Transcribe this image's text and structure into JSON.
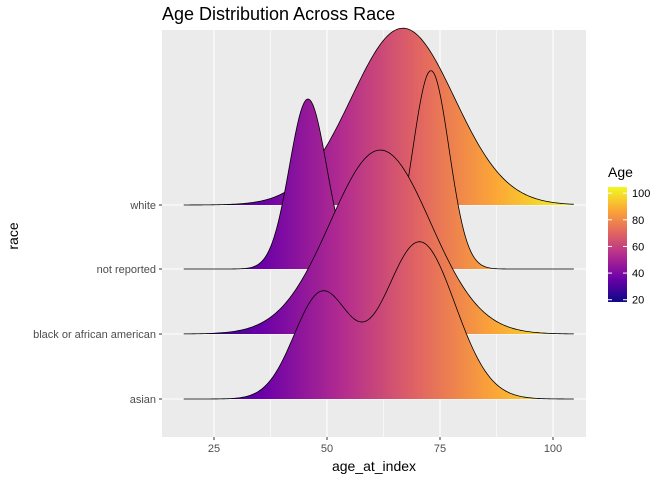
{
  "chart_data": {
    "type": "ridgeline",
    "title": "Age Distribution Across Race",
    "xlabel": "age_at_index",
    "ylabel": "race",
    "xlim": [
      13.5,
      107.3
    ],
    "x_ticks": [
      25,
      50,
      75,
      100
    ],
    "x_range_data": [
      18.3,
      104.6
    ],
    "categories": [
      "asian",
      "black or african american",
      "not reported",
      "white"
    ],
    "ridges": [
      {
        "category": "asian",
        "components": [
          {
            "weight": 0.4,
            "mean": 48.8,
            "sd": 6.1
          },
          {
            "weight": 0.6,
            "mean": 70.5,
            "sd": 7.8
          }
        ],
        "peak_height_rows": 2.42
      },
      {
        "category": "black or african american",
        "components": [
          {
            "weight": 1.0,
            "mean": 61.8,
            "sd": 11.1
          }
        ],
        "peak_height_rows": 2.83
      },
      {
        "category": "not reported",
        "components": [
          {
            "weight": 0.3,
            "mean": 45.8,
            "sd": 4.1
          },
          {
            "weight": 0.35,
            "mean": 73.0,
            "sd": 4.0
          }
        ],
        "peak_height_rows": 3.05
      },
      {
        "category": "white",
        "components": [
          {
            "weight": 1.0,
            "mean": 66.8,
            "sd": 11.4
          }
        ],
        "peak_height_rows": 2.72
      }
    ],
    "legend": {
      "title": "Age",
      "ticks": [
        20,
        40,
        60,
        80,
        100
      ],
      "range": [
        18.3,
        104.6
      ],
      "placement": "right",
      "colors": [
        "#0d0887",
        "#6a00a8",
        "#b12a90",
        "#e16462",
        "#fca636",
        "#f0f921"
      ]
    },
    "grid": true,
    "panel_background": "#ebebeb",
    "grid_color": "#ffffff"
  }
}
